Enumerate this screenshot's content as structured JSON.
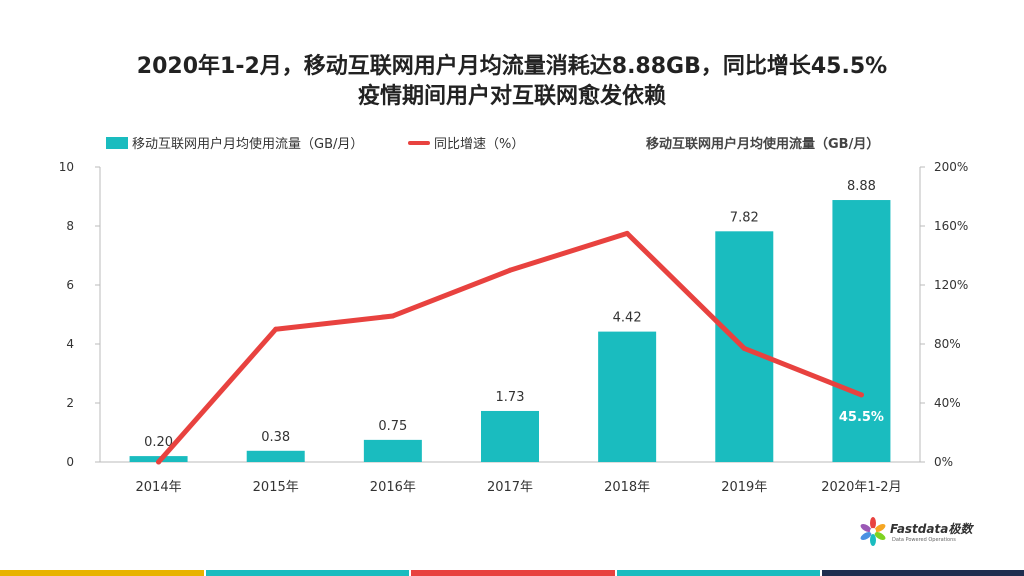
{
  "title_line1": "2020年1-2月，移动互联网用户月均流量消耗达8.88GB，同比增长45.5%",
  "title_line2": "疫情期间用户对互联网愈发依赖",
  "legend": {
    "bar_label": "移动互联网用户月均使用流量（GB/月）",
    "line_label": "同比增速（%）"
  },
  "right_header": "移动互联网用户月均使用流量（GB/月）",
  "logo": {
    "name": "Fastdata极数",
    "tagline": "Data Powered Operations"
  },
  "colors": {
    "bar": "#1ABCBF",
    "line": "#E8423F",
    "stripes": [
      "#E8B300",
      "#1ABCBF",
      "#E8423F",
      "#1ABCBF",
      "#1F2D4F"
    ]
  },
  "chart_data": {
    "type": "bar",
    "categories": [
      "2014年",
      "2015年",
      "2016年",
      "2017年",
      "2018年",
      "2019年",
      "2020年1-2月"
    ],
    "series": [
      {
        "name": "移动互联网用户月均使用流量（GB/月）",
        "type": "bar",
        "axis": "left",
        "values": [
          0.2,
          0.38,
          0.75,
          1.73,
          4.42,
          7.82,
          8.88
        ],
        "labels": [
          "0.20",
          "0.38",
          "0.75",
          "1.73",
          "4.42",
          "7.82",
          "8.88"
        ]
      },
      {
        "name": "同比增速（%）",
        "type": "line",
        "axis": "right",
        "values": [
          0,
          90,
          99,
          130,
          155,
          77,
          45.5
        ],
        "point_labels": [
          "",
          "",
          "",
          "",
          "",
          "",
          "45.5%"
        ]
      }
    ],
    "y_left": {
      "min": 0,
      "max": 10,
      "ticks": [
        "0",
        "2",
        "4",
        "6",
        "8",
        "10"
      ]
    },
    "y_right": {
      "min": 0,
      "max": 200,
      "ticks": [
        "0%",
        "40%",
        "80%",
        "120%",
        "160%",
        "200%"
      ]
    },
    "grid": false,
    "legend_position": "top-left"
  }
}
